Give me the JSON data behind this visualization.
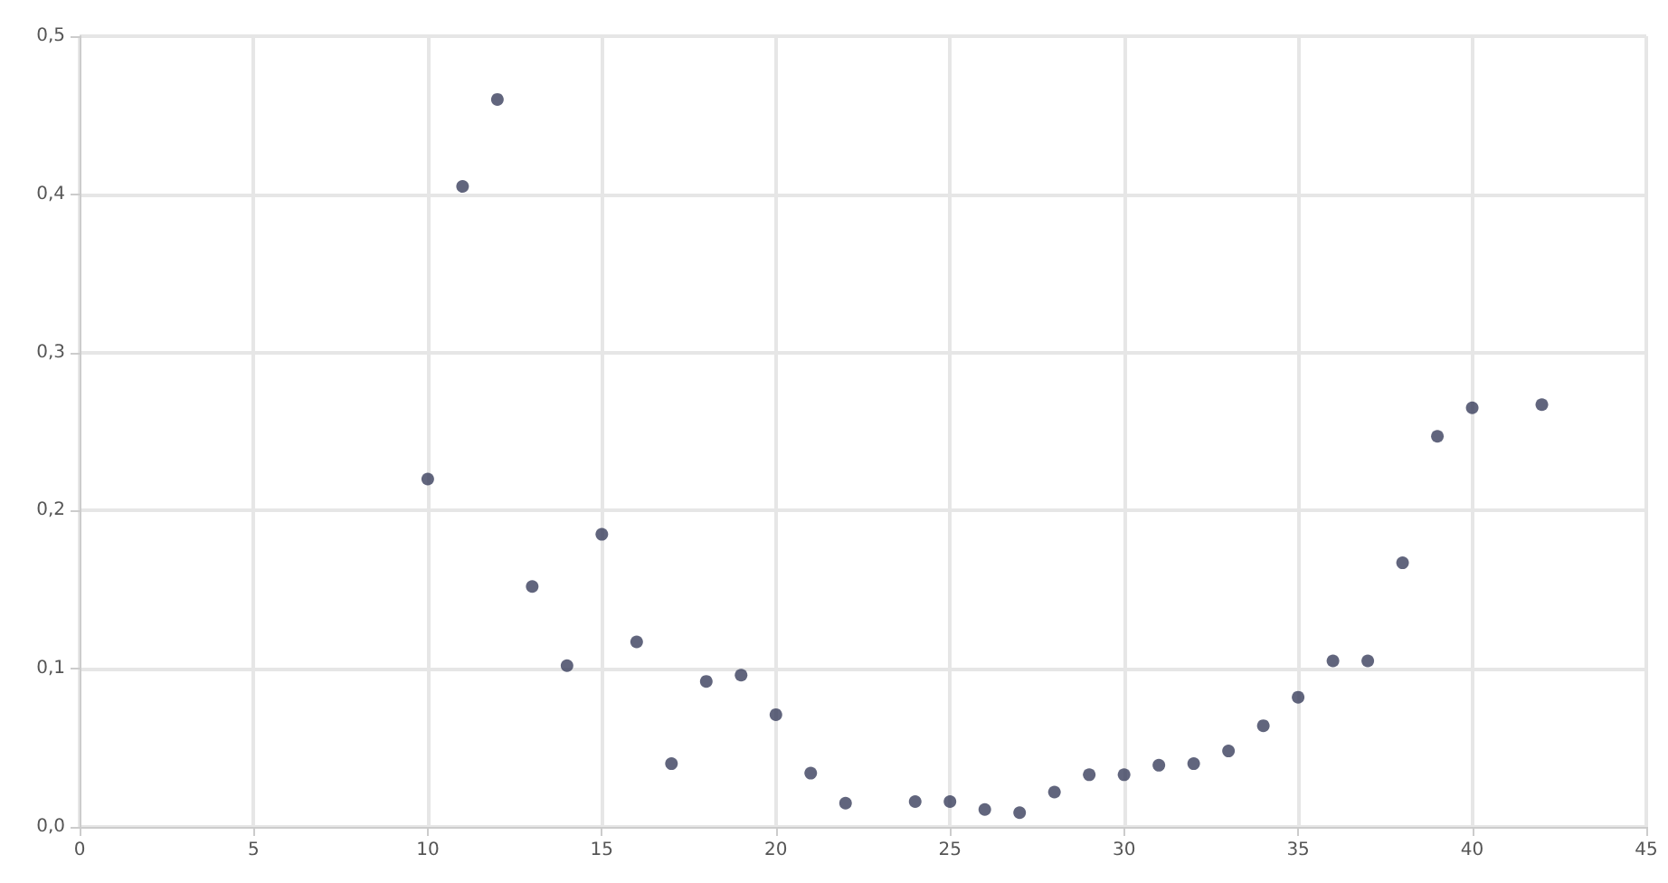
{
  "chart_data": {
    "type": "scatter",
    "x": [
      10,
      11,
      12,
      13,
      14,
      15,
      16,
      17,
      18,
      19,
      20,
      21,
      22,
      24,
      25,
      26,
      27,
      28,
      29,
      30,
      31,
      32,
      33,
      34,
      35,
      36,
      37,
      38,
      39,
      40,
      42
    ],
    "values": [
      0.22,
      0.405,
      0.46,
      0.152,
      0.102,
      0.185,
      0.117,
      0.04,
      0.092,
      0.096,
      0.071,
      0.034,
      0.015,
      0.016,
      0.016,
      0.011,
      0.009,
      0.022,
      0.033,
      0.033,
      0.039,
      0.04,
      0.048,
      0.064,
      0.082,
      0.105,
      0.105,
      0.167,
      0.247,
      0.265,
      0.267
    ],
    "color": "#3a3f5c",
    "marker": "circle",
    "grid": true,
    "xlim": [
      0,
      45
    ],
    "xticks": [
      0,
      5,
      10,
      15,
      20,
      25,
      30,
      35,
      40,
      45
    ],
    "ylim": [
      0,
      0.5
    ],
    "yticks": [
      {
        "value": 0,
        "label": "0,0"
      },
      {
        "value": 0.1,
        "label": "0,1"
      },
      {
        "value": 0.2,
        "label": "0,2"
      },
      {
        "value": 0.3,
        "label": "0,3"
      },
      {
        "value": 0.4,
        "label": "0,4"
      },
      {
        "value": 0.5,
        "label": "0,5"
      }
    ]
  }
}
